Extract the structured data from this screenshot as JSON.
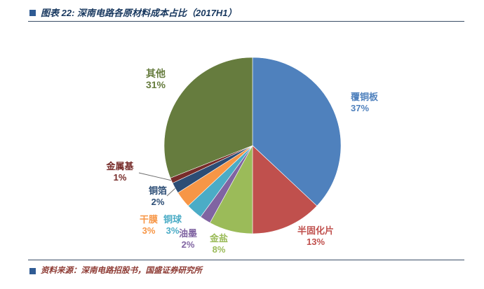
{
  "page": {
    "background": "#FFFFFF"
  },
  "header": {
    "title": "图表 22: 深南电路各原材料成本占比（2017H1）",
    "title_color": "#17375E",
    "bullet_color": "#2F5B94"
  },
  "footer": {
    "source": "资料来源：深南电路招股书，国盛证券研究所",
    "source_color": "#8E3B34",
    "bullet_color": "#2F5B94"
  },
  "chart_data": {
    "type": "pie",
    "title": "深南电路各原材料成本占比（2017H1）",
    "unit": "%",
    "total": 100,
    "start_angle_deg": 0,
    "direction": "clockwise",
    "legend": "none (labels placed around pie)",
    "slices": [
      {
        "id": "copper-clad-laminate",
        "label": "覆铜板",
        "value": 37,
        "percent_text": "37%",
        "color": "#4F81BD"
      },
      {
        "id": "prepreg",
        "label": "半固化片",
        "value": 13,
        "percent_text": "13%",
        "color": "#C0504D"
      },
      {
        "id": "gold-salt",
        "label": "金盐",
        "value": 8,
        "percent_text": "8%",
        "color": "#9BBB59"
      },
      {
        "id": "ink",
        "label": "油墨",
        "value": 2,
        "percent_text": "2%",
        "color": "#8064A2"
      },
      {
        "id": "copper-ball",
        "label": "铜球",
        "value": 3,
        "percent_text": "3%",
        "color": "#4BACC6"
      },
      {
        "id": "dry-film",
        "label": "干膜",
        "value": 3,
        "percent_text": "3%",
        "color": "#F79646"
      },
      {
        "id": "copper-foil",
        "label": "铜箔",
        "value": 2,
        "percent_text": "2%",
        "color": "#2C4D75"
      },
      {
        "id": "metal-base",
        "label": "金属基",
        "value": 1,
        "percent_text": "1%",
        "color": "#772C2A"
      },
      {
        "id": "others",
        "label": "其他",
        "value": 31,
        "percent_text": "31%",
        "color": "#667C3E"
      }
    ]
  }
}
